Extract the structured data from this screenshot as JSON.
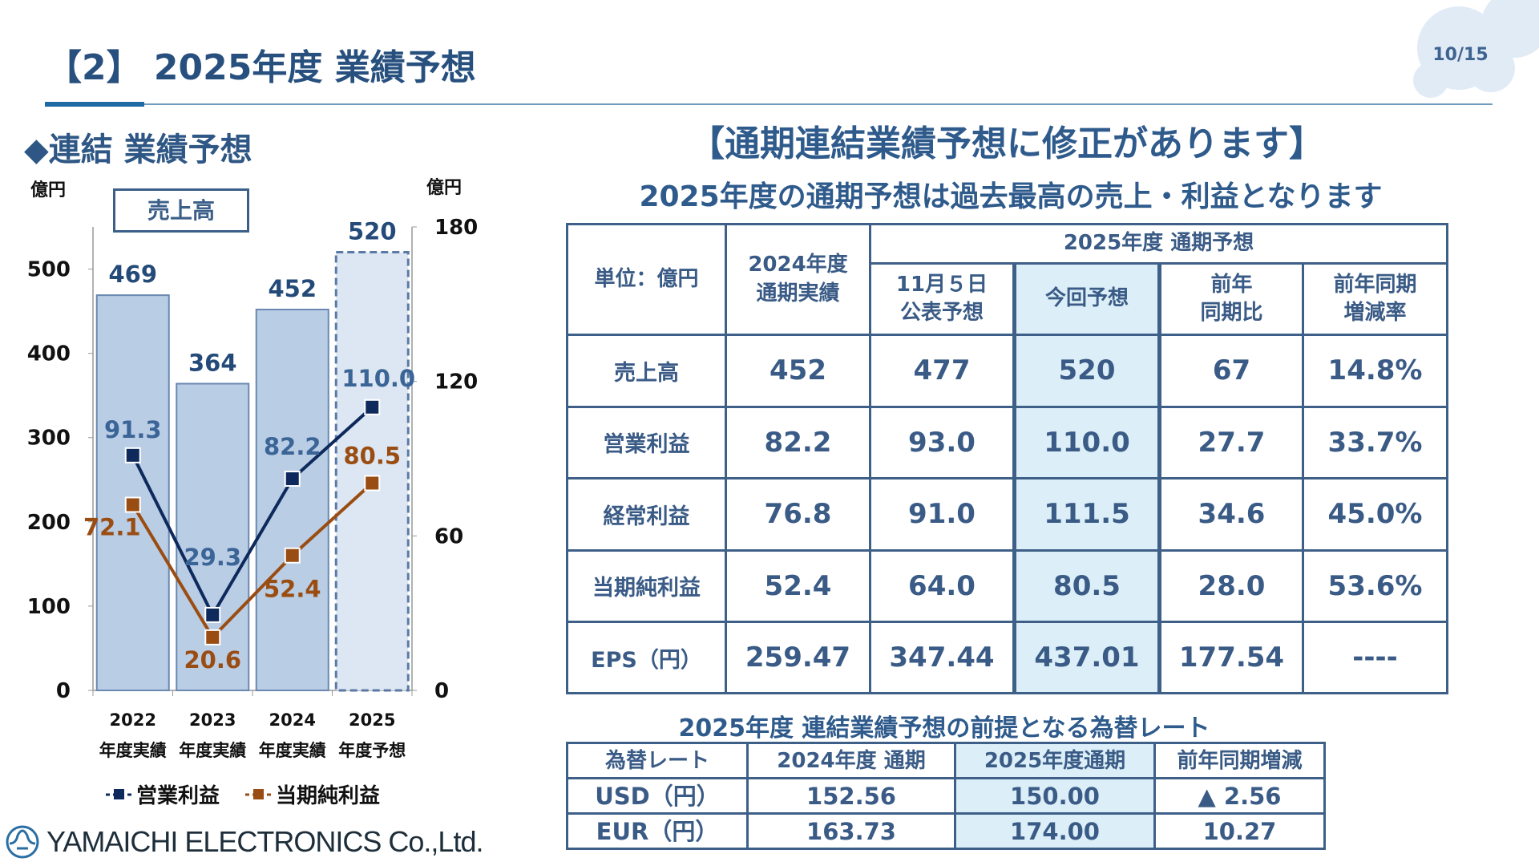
{
  "header": {
    "title": "【2】 2025年度 業績予想",
    "page": "10/15"
  },
  "section_title": "◆連結 業績予想",
  "chart_data": {
    "type": "bar+line",
    "left_unit": "億円",
    "right_unit": "億円",
    "legend_box": "売上高",
    "categories": [
      "2022",
      "2023",
      "2024",
      "2025"
    ],
    "category_sublabels": [
      "年度実績",
      "年度実績",
      "年度実績",
      "年度予想"
    ],
    "y_left": {
      "min": 0,
      "max": 550,
      "ticks": [
        0,
        100,
        200,
        300,
        400,
        500
      ]
    },
    "y_right": {
      "min": 0,
      "max": 180,
      "ticks": [
        0,
        60,
        120,
        180
      ]
    },
    "bars": {
      "name": "売上高",
      "values": [
        469,
        364,
        452,
        520
      ],
      "forecast_index": 3,
      "color": "#b9cde5",
      "forecast_color": "#dde7f3"
    },
    "series": [
      {
        "name": "営業利益",
        "axis": "right",
        "values": [
          91.3,
          29.3,
          82.2,
          110.0
        ],
        "labels": [
          "91.3",
          "29.3",
          "82.2",
          "110.0"
        ],
        "color": "#0e2a5c",
        "label_color": "#3b6497"
      },
      {
        "name": "当期純利益",
        "axis": "right",
        "values": [
          72.1,
          20.6,
          52.4,
          80.5
        ],
        "labels": [
          "72.1",
          "20.6",
          "52.4",
          "80.5"
        ],
        "color": "#9a4d12",
        "label_color": "#9a4d12"
      }
    ],
    "legend": "bottom"
  },
  "headline": "【通期連結業績予想に修正があります】",
  "subheadline": "2025年度の通期予想は過去最高の売上・利益となります",
  "forecast_table": {
    "unit_label": "単位：億円",
    "col_actual": "2024年度\n通期実績",
    "group_header": "2025年度 通期予想",
    "sub_headers": [
      "11月５日\n公表予想",
      "今回予想",
      "前年\n同期比",
      "前年同期\n増減率"
    ],
    "rows": [
      {
        "label": "売上高",
        "values": [
          "452",
          "477",
          "520",
          "67",
          "14.8%"
        ]
      },
      {
        "label": "営業利益",
        "values": [
          "82.2",
          "93.0",
          "110.0",
          "27.7",
          "33.7%"
        ]
      },
      {
        "label": "経常利益",
        "values": [
          "76.8",
          "91.0",
          "111.5",
          "34.6",
          "45.0%"
        ]
      },
      {
        "label": "当期純利益",
        "values": [
          "52.4",
          "64.0",
          "80.5",
          "28.0",
          "53.6%"
        ]
      },
      {
        "label": "EPS（円）",
        "values": [
          "259.47",
          "347.44",
          "437.01",
          "177.54",
          "----"
        ]
      }
    ]
  },
  "fx": {
    "title": "2025年度 連結業績予想の前提となる為替レート",
    "headers": [
      "為替レート",
      "2024年度 通期",
      "2025年度通期",
      "前年同期増減"
    ],
    "rows": [
      {
        "label": "USD（円）",
        "values": [
          "152.56",
          "150.00",
          "▲ 2.56"
        ]
      },
      {
        "label": "EUR（円）",
        "values": [
          "163.73",
          "174.00",
          "10.27"
        ]
      }
    ]
  },
  "footer": {
    "company": "YAMAICHI ELECTRONICS Co.,Ltd."
  }
}
